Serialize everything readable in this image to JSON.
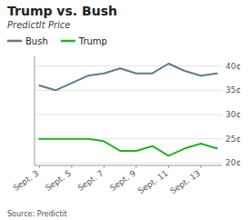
{
  "chart_data": {
    "type": "line",
    "title": "Trump vs. Bush",
    "subtitle": "PredictIt Price",
    "annotations": [
      "Source: Predictit"
    ],
    "categories": [
      "Sept. 3",
      null,
      "Sept. 5",
      null,
      "Sept. 7",
      null,
      "Sept. 9",
      null,
      "Sept. 11",
      null,
      "Sept. 13",
      null
    ],
    "series": [
      {
        "name": "Bush",
        "color": "#5b7d8c",
        "values": [
          36,
          35,
          36.5,
          38,
          38.5,
          39.5,
          38.5,
          38.5,
          40.5,
          39,
          38,
          38.5
        ]
      },
      {
        "name": "Trump",
        "color": "#1db51d",
        "values": [
          25,
          25,
          25,
          25,
          24.5,
          22.5,
          22.5,
          23.5,
          21.5,
          23,
          24,
          23
        ]
      }
    ],
    "ylim": [
      19.5,
      42
    ],
    "yticks": [
      {
        "value": 20,
        "label": "20¢"
      },
      {
        "value": 25,
        "label": "25¢"
      },
      {
        "value": 30,
        "label": "30¢"
      },
      {
        "value": 35,
        "label": "35¢"
      },
      {
        "value": 40,
        "label": "40¢"
      }
    ],
    "grid": true
  }
}
